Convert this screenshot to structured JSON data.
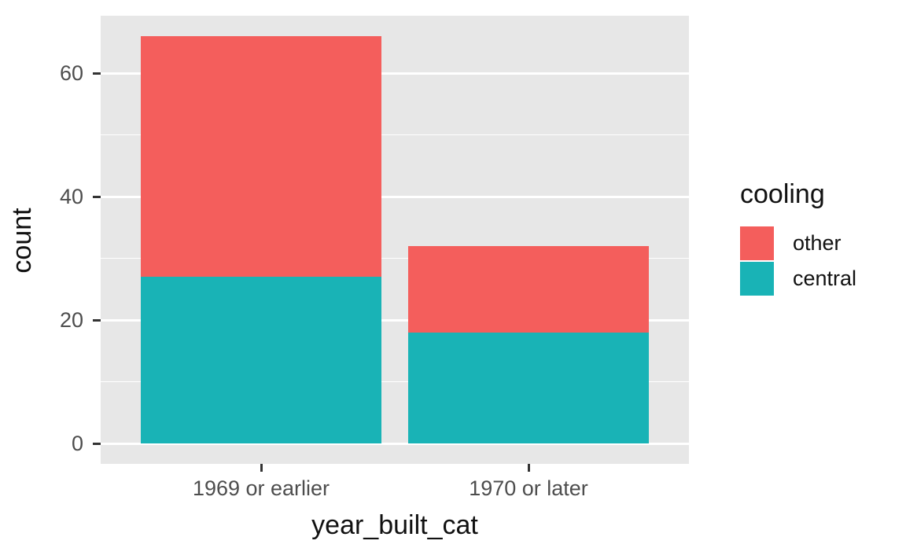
{
  "chart_data": {
    "type": "bar",
    "stacked": true,
    "xlabel": "year_built_cat",
    "ylabel": "count",
    "categories": [
      "1969 or earlier",
      "1970 or later"
    ],
    "series": [
      {
        "name": "other",
        "color": "#F45E5C",
        "values": [
          39,
          14
        ]
      },
      {
        "name": "central",
        "color": "#19B3B6",
        "values": [
          27,
          18
        ]
      }
    ],
    "stack_totals": [
      66,
      32
    ],
    "y_ticks": [
      0,
      20,
      40,
      60
    ],
    "y_minor_ticks": [
      10,
      30,
      50
    ],
    "ylim": [
      -3.3,
      69.3
    ],
    "bar_width_fraction": 0.9,
    "legend": {
      "title": "cooling",
      "position": "right",
      "entries": [
        {
          "label": "other",
          "color": "#F45E5C"
        },
        {
          "label": "central",
          "color": "#19B3B6"
        }
      ]
    },
    "style": {
      "panel_background": "#E7E7E7",
      "grid_color": "#FFFFFF",
      "tick_color": "#333333",
      "tick_label_color": "#4D4D4D",
      "title_color": "#111111"
    }
  }
}
